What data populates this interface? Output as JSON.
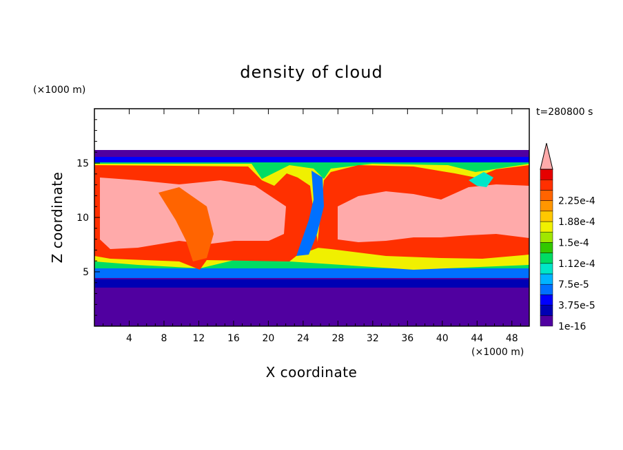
{
  "chart_data": {
    "type": "heatmap",
    "title": "density of cloud",
    "xlabel": "X coordinate",
    "ylabel": "Z coordinate",
    "x_unit": "(×1000 m)",
    "y_unit": "(×1000 m)",
    "time_label": "t=280800 s",
    "xlim": [
      0,
      50
    ],
    "ylim": [
      0,
      20
    ],
    "x_ticks": [
      4,
      8,
      12,
      16,
      20,
      24,
      28,
      32,
      36,
      40,
      44,
      48
    ],
    "y_ticks": [
      5,
      10,
      15
    ],
    "colorbar": {
      "labels": [
        "1e-16",
        "3.75e-5",
        "7.5e-5",
        "1.12e-4",
        "1.5e-4",
        "1.88e-4",
        "2.25e-4"
      ],
      "colors": [
        "#5000a0",
        "#0000b4",
        "#0000ff",
        "#0070ff",
        "#00b4ff",
        "#00e6c8",
        "#00dc64",
        "#32c800",
        "#a0e600",
        "#f0f000",
        "#ffc800",
        "#ff9600",
        "#ff6400",
        "#ff3000",
        "#e60000",
        "#ffaaaa"
      ]
    },
    "fields": {
      "cloud_layer_z": [
        3.8,
        16.0
      ],
      "surface_layer_z": [
        0.0,
        3.6
      ],
      "top_z": 16.0
    }
  }
}
